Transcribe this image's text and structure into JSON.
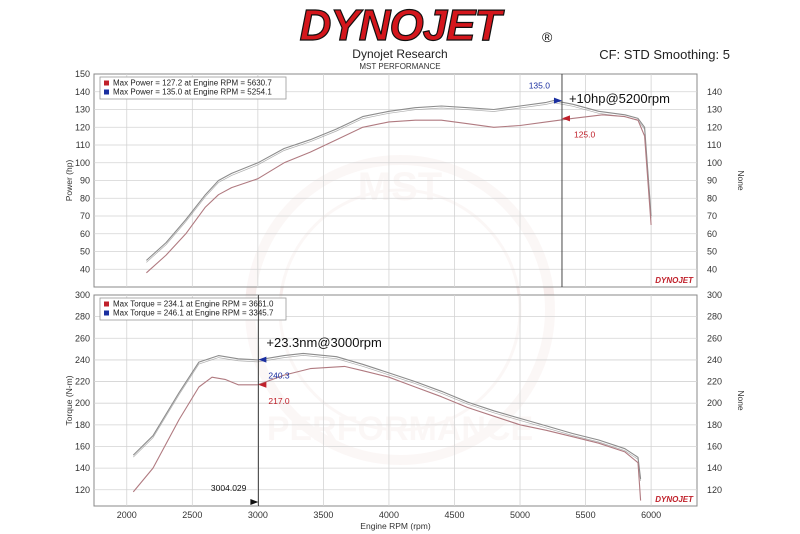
{
  "header": {
    "brand_text": "DYNOJET",
    "brand_mark": "®",
    "title": "Dynojet Research",
    "subtitle": "MST PERFORMANCE",
    "cf_text": "CF: STD Smoothing: 5"
  },
  "watermark": {
    "top_text": "MST",
    "bottom_text": "PERFORMANCE"
  },
  "colors": {
    "curve": "#8c8c8c",
    "curve_lower": "#b07a80",
    "marker_red": "#c0202a",
    "marker_blue": "#1a2fa0",
    "grid": "#d3d3d3",
    "brand_red": "#d4161c"
  },
  "chart_data": [
    {
      "type": "line",
      "panel": "power",
      "ylabel": "Power (hp)",
      "ylabel_right": "None",
      "xlim": [
        1750,
        6350
      ],
      "ylim": [
        30,
        150
      ],
      "yticks": [
        40,
        50,
        60,
        70,
        80,
        90,
        100,
        110,
        120,
        130,
        140,
        150
      ],
      "yticks_right": [
        40,
        50,
        60,
        70,
        80,
        90,
        100,
        110,
        120,
        130,
        140
      ],
      "grid": true,
      "legend_position": "top-left",
      "legend": [
        {
          "color": "red",
          "text": "Max Power = 127.2 at Engine RPM = 5630.7"
        },
        {
          "color": "blue",
          "text": "Max Power = 135.0 at Engine RPM = 5254.1"
        }
      ],
      "series": [
        {
          "x": [
            2150,
            2300,
            2450,
            2600,
            2700,
            2800,
            3000,
            3200,
            3400,
            3600,
            3800,
            4000,
            4200,
            4400,
            4600,
            4800,
            5000,
            5200,
            5254,
            5400,
            5600,
            5800,
            5900,
            5950,
            6000
          ],
          "y": [
            45,
            55,
            68,
            82,
            90,
            94,
            100,
            108,
            113,
            119,
            126,
            129,
            131,
            132,
            131,
            130,
            132,
            134,
            135,
            133,
            129,
            127,
            125,
            120,
            70
          ]
        },
        {
          "x": [
            2150,
            2300,
            2450,
            2600,
            2700,
            2800,
            3000,
            3200,
            3400,
            3600,
            3800,
            4000,
            4200,
            4400,
            4600,
            4800,
            5000,
            5200,
            5400,
            5630,
            5800,
            5900,
            5950,
            6000
          ],
          "y": [
            38,
            48,
            60,
            75,
            82,
            86,
            91,
            100,
            106,
            113,
            120,
            123,
            124,
            124,
            122,
            120,
            121,
            123,
            125,
            127,
            126,
            124,
            115,
            65
          ]
        }
      ],
      "cursor_x": 5320,
      "annotations": [
        {
          "text": "135.0",
          "x": 5320,
          "y": 135.0,
          "color": "blue"
        },
        {
          "text": "125.0",
          "x": 5320,
          "y": 125.0,
          "color": "red"
        },
        {
          "text": "+10hp@5200rpm"
        }
      ]
    },
    {
      "type": "line",
      "panel": "torque",
      "xlabel": "Engine RPM (rpm)",
      "ylabel": "Torque (N-m)",
      "ylabel_right": "None",
      "xlim": [
        1750,
        6350
      ],
      "ylim": [
        105,
        300
      ],
      "xticks": [
        2000,
        2500,
        3000,
        3500,
        4000,
        4500,
        5000,
        5500,
        6000
      ],
      "yticks": [
        120,
        140,
        160,
        180,
        200,
        220,
        240,
        260,
        280,
        300
      ],
      "yticks_right": [
        120,
        140,
        160,
        180,
        200,
        220,
        240,
        260,
        280,
        300
      ],
      "grid": true,
      "legend_position": "top-left",
      "legend": [
        {
          "color": "red",
          "text": "Max Torque = 234.1 at Engine RPM = 3661.0"
        },
        {
          "color": "blue",
          "text": "Max Torque = 246.1 at Engine RPM = 3345.7"
        }
      ],
      "series": [
        {
          "x": [
            2050,
            2200,
            2400,
            2550,
            2700,
            2850,
            3000,
            3200,
            3346,
            3600,
            3800,
            4000,
            4200,
            4400,
            4600,
            4800,
            5000,
            5200,
            5400,
            5600,
            5800,
            5900,
            5920
          ],
          "y": [
            152,
            170,
            210,
            238,
            244,
            241,
            240,
            244,
            246,
            243,
            236,
            228,
            220,
            211,
            201,
            193,
            186,
            179,
            172,
            166,
            158,
            150,
            130
          ]
        },
        {
          "x": [
            2050,
            2200,
            2400,
            2550,
            2650,
            2750,
            2850,
            3000,
            3200,
            3400,
            3661,
            3800,
            4000,
            4200,
            4400,
            4600,
            4800,
            5000,
            5200,
            5400,
            5600,
            5800,
            5900,
            5920
          ],
          "y": [
            118,
            140,
            185,
            215,
            224,
            222,
            217,
            217,
            226,
            232,
            234,
            230,
            224,
            215,
            206,
            196,
            188,
            180,
            175,
            169,
            163,
            155,
            145,
            110
          ]
        }
      ],
      "cursor_x": 3004.029,
      "annotations": [
        {
          "text": "240.3",
          "x": 3004,
          "y": 240.3,
          "color": "blue"
        },
        {
          "text": "217.0",
          "x": 3004,
          "y": 217.0,
          "color": "red"
        },
        {
          "text": "3004.029"
        },
        {
          "text": "+23.3nm@3000rpm"
        }
      ]
    }
  ]
}
